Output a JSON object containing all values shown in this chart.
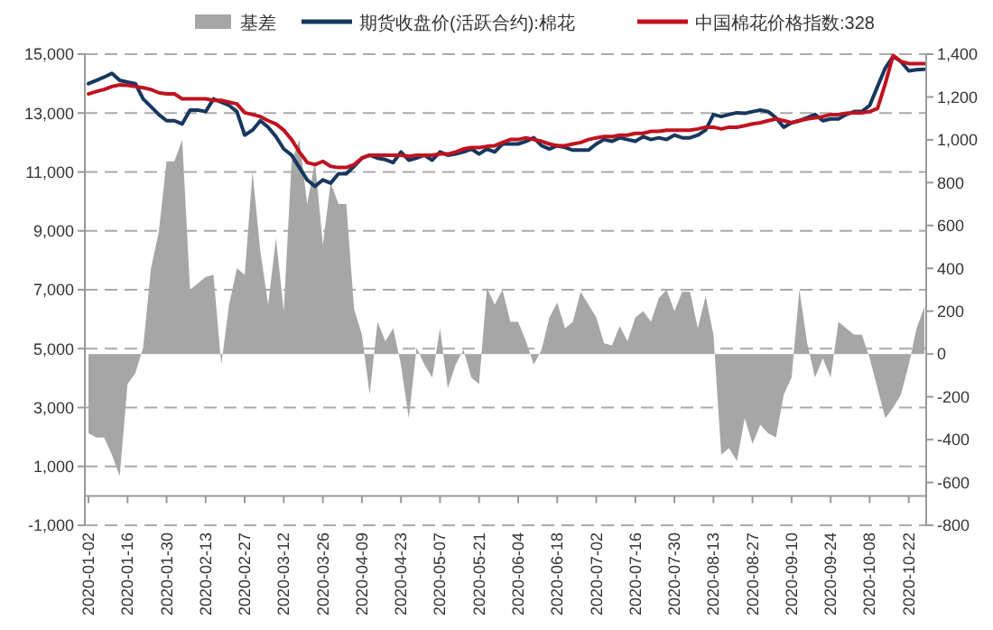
{
  "chart_data": {
    "type": "line",
    "legend": "top",
    "grid": "y",
    "categories": [
      "2020-01-02",
      null,
      null,
      null,
      null,
      "2020-01-16",
      null,
      null,
      null,
      null,
      "2020-01-30",
      null,
      null,
      null,
      null,
      "2020-02-13",
      null,
      null,
      null,
      null,
      "2020-02-27",
      null,
      null,
      null,
      null,
      "2020-03-12",
      null,
      null,
      null,
      null,
      "2020-03-26",
      null,
      null,
      null,
      null,
      "2020-04-09",
      null,
      null,
      null,
      null,
      "2020-04-23",
      null,
      null,
      null,
      null,
      "2020-05-07",
      null,
      null,
      null,
      null,
      "2020-05-21",
      null,
      null,
      null,
      null,
      "2020-06-04",
      null,
      null,
      null,
      null,
      "2020-06-18",
      null,
      null,
      null,
      null,
      "2020-07-02",
      null,
      null,
      null,
      null,
      "2020-07-16",
      null,
      null,
      null,
      null,
      "2020-07-30",
      null,
      null,
      null,
      null,
      "2020-08-13",
      null,
      null,
      null,
      null,
      "2020-08-27",
      null,
      null,
      null,
      null,
      "2020-09-10",
      null,
      null,
      null,
      null,
      "2020-09-24",
      null,
      null,
      null,
      null,
      "2020-10-08",
      null,
      null,
      null,
      null,
      "2020-10-22",
      null,
      null
    ],
    "ylim": [
      -1000,
      15000
    ],
    "yticks": [
      {
        "value": -1000,
        "label": "-1,000"
      },
      {
        "value": 1000,
        "label": "1,000"
      },
      {
        "value": 3000,
        "label": "3,000"
      },
      {
        "value": 5000,
        "label": "5,000"
      },
      {
        "value": 7000,
        "label": "7,000"
      },
      {
        "value": 9000,
        "label": "9,000"
      },
      {
        "value": 11000,
        "label": "11,000"
      },
      {
        "value": 13000,
        "label": "13,000"
      },
      {
        "value": 15000,
        "label": "15,000"
      }
    ],
    "y2lim": [
      -800,
      1400
    ],
    "y2ticks": [
      -800,
      -600,
      -400,
      -200,
      0,
      200,
      400,
      600,
      800,
      {
        "value": 1000,
        "label": "1,000"
      },
      {
        "value": 1200,
        "label": "1,200"
      },
      {
        "value": 1400,
        "label": "1,400"
      }
    ],
    "series": [
      {
        "name": "基差",
        "type": "area",
        "axis": "y2",
        "color": "#a6a6a6",
        "values": [
          -370,
          -390,
          -390,
          -470,
          -570,
          -140,
          -90,
          30,
          400,
          570,
          900,
          900,
          1000,
          300,
          330,
          360,
          370,
          -50,
          230,
          400,
          370,
          850,
          480,
          230,
          540,
          200,
          900,
          1000,
          700,
          900,
          510,
          800,
          700,
          700,
          210,
          90,
          -190,
          150,
          60,
          120,
          -50,
          -300,
          30,
          -50,
          -110,
          120,
          -160,
          -50,
          20,
          -110,
          -140,
          310,
          230,
          300,
          150,
          150,
          60,
          -50,
          20,
          170,
          240,
          120,
          150,
          290,
          230,
          170,
          50,
          40,
          130,
          60,
          170,
          200,
          150,
          260,
          300,
          200,
          290,
          290,
          120,
          270,
          90,
          -470,
          -440,
          -500,
          -300,
          -420,
          -330,
          -370,
          -390,
          -190,
          -110,
          300,
          50,
          -110,
          -20,
          -110,
          150,
          120,
          90,
          90,
          -20,
          -160,
          -300,
          -250,
          -190,
          -50,
          120,
          220
        ]
      },
      {
        "name": "期货收盘价(活跃合约):棉花",
        "color": "#17375e",
        "values": [
          14000,
          14110,
          14220,
          14350,
          14110,
          14050,
          14000,
          13480,
          13220,
          12950,
          12740,
          12740,
          12630,
          13100,
          13100,
          13050,
          13480,
          13370,
          13260,
          13050,
          12250,
          12420,
          12740,
          12520,
          12200,
          11780,
          11570,
          11150,
          10730,
          10510,
          10730,
          10620,
          10940,
          10940,
          11190,
          11470,
          11570,
          11470,
          11420,
          11320,
          11680,
          11400,
          11470,
          11570,
          11400,
          11680,
          11570,
          11610,
          11680,
          11780,
          11610,
          11780,
          11680,
          11950,
          11950,
          11950,
          12040,
          12160,
          11890,
          11780,
          11890,
          11830,
          11740,
          11740,
          11740,
          11950,
          12100,
          12040,
          12160,
          12100,
          12040,
          12200,
          12100,
          12160,
          12100,
          12250,
          12160,
          12160,
          12250,
          12420,
          12950,
          12880,
          12950,
          13010,
          12990,
          13050,
          13100,
          13050,
          12840,
          12520,
          12670,
          12740,
          12840,
          12950,
          12740,
          12800,
          12800,
          12950,
          13050,
          13050,
          13260,
          13900,
          14530,
          14920,
          14750,
          14430,
          14470,
          14490
        ]
      },
      {
        "name": "中国棉花价格指数:328",
        "color": "#c0121f",
        "values": [
          13650,
          13730,
          13800,
          13900,
          13960,
          13940,
          13900,
          13860,
          13800,
          13690,
          13650,
          13650,
          13480,
          13480,
          13480,
          13480,
          13430,
          13430,
          13370,
          13310,
          13010,
          12950,
          12880,
          12740,
          12630,
          12420,
          12100,
          11680,
          11320,
          11250,
          11360,
          11190,
          11150,
          11150,
          11250,
          11470,
          11570,
          11570,
          11570,
          11570,
          11570,
          11530,
          11570,
          11570,
          11570,
          11610,
          11610,
          11680,
          11780,
          11830,
          11830,
          11870,
          11890,
          12000,
          12100,
          12100,
          12160,
          12100,
          12040,
          11950,
          11890,
          11890,
          11950,
          12000,
          12100,
          12160,
          12200,
          12200,
          12250,
          12250,
          12310,
          12310,
          12380,
          12380,
          12420,
          12420,
          12420,
          12420,
          12460,
          12520,
          12520,
          12460,
          12520,
          12520,
          12570,
          12630,
          12670,
          12740,
          12800,
          12740,
          12670,
          12740,
          12800,
          12840,
          12880,
          12950,
          12950,
          12990,
          13010,
          13010,
          13050,
          13160,
          14000,
          14960,
          14750,
          14680,
          14680,
          14680
        ]
      }
    ]
  }
}
